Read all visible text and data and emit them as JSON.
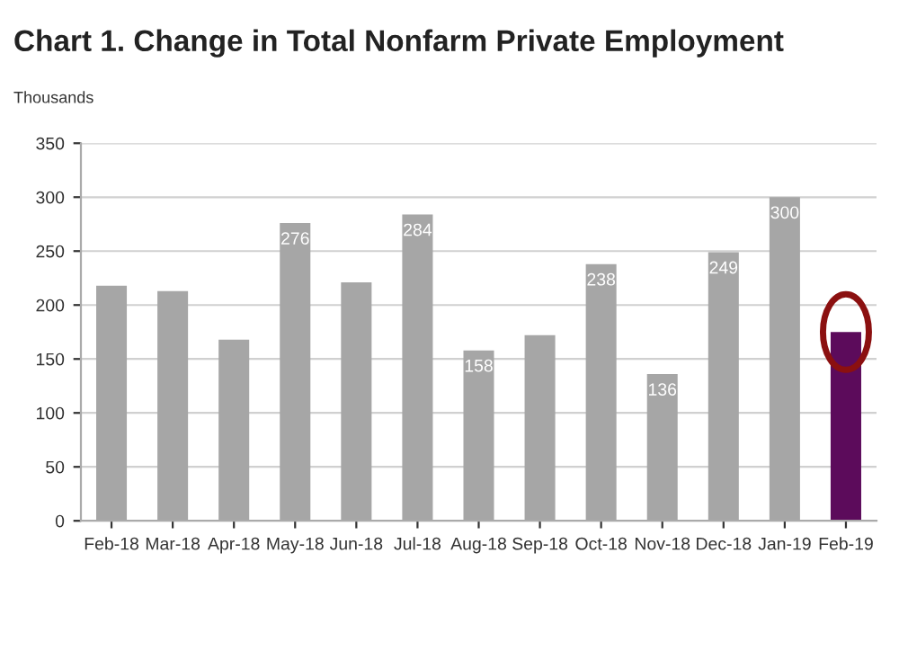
{
  "chart_data": {
    "type": "bar",
    "title": "Chart 1. Change in Total Nonfarm Private Employment",
    "ylabel": "Thousands",
    "categories": [
      "Feb-18",
      "Mar-18",
      "Apr-18",
      "May-18",
      "Jun-18",
      "Jul-18",
      "Aug-18",
      "Sep-18",
      "Oct-18",
      "Nov-18",
      "Dec-18",
      "Jan-19",
      "Feb-19"
    ],
    "values": [
      218,
      213,
      168,
      276,
      221,
      284,
      158,
      172,
      238,
      136,
      249,
      300,
      175
    ],
    "value_labels": [
      null,
      null,
      null,
      "276",
      null,
      "284",
      "158",
      null,
      "238",
      "136",
      "249",
      "300",
      null
    ],
    "colors": [
      "#a6a6a6",
      "#a6a6a6",
      "#a6a6a6",
      "#a6a6a6",
      "#a6a6a6",
      "#a6a6a6",
      "#a6a6a6",
      "#a6a6a6",
      "#a6a6a6",
      "#a6a6a6",
      "#a6a6a6",
      "#a6a6a6",
      "#5c0b5b"
    ],
    "ylim": [
      0,
      350
    ],
    "yticks": [
      0,
      50,
      100,
      150,
      200,
      250,
      300,
      350
    ],
    "grid": "y",
    "legend": false
  }
}
